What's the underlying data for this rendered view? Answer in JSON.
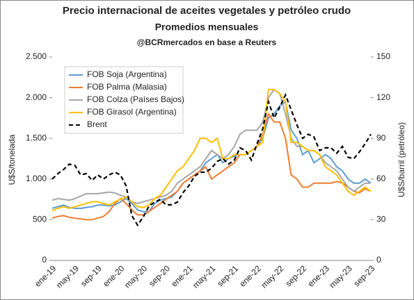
{
  "chart_data": {
    "type": "line",
    "title": "Precio internacional de aceites vegetales y petróleo crudo",
    "subtitle": "Promedios mensuales",
    "source": "@BCRmercados en base a Reuters",
    "y_label": "U$S/tonelada",
    "y2_label": "U$S/barril (petróleo)",
    "categories": [
      "ene-19",
      null,
      null,
      null,
      "may-19",
      null,
      null,
      null,
      "sep-19",
      null,
      null,
      null,
      "ene-20",
      null,
      null,
      null,
      "may-20",
      null,
      null,
      null,
      "sep-20",
      null,
      null,
      null,
      "ene-21",
      null,
      null,
      null,
      "may-21",
      null,
      null,
      null,
      "sep-21",
      null,
      null,
      null,
      "ene-22",
      null,
      null,
      null,
      "may-22",
      null,
      null,
      null,
      "sep-22",
      null,
      null,
      null,
      "ene-23",
      null,
      null,
      null,
      "may-23",
      null,
      null,
      null,
      "sep-23"
    ],
    "ylim": [
      0,
      2500
    ],
    "yticks": [
      0,
      500,
      {
        "value": 1000,
        "label": "1.000"
      },
      {
        "value": 1500,
        "label": "1.500"
      },
      {
        "value": 2000,
        "label": "2.000"
      },
      {
        "value": 2500,
        "label": "2.500"
      }
    ],
    "y2lim": [
      0,
      150
    ],
    "y2ticks": [
      0,
      30,
      60,
      90,
      120,
      150
    ],
    "legend": "upper-left",
    "series": [
      {
        "name": "FOB Soja (Argentina)",
        "color": "#5b9bd5",
        "values": [
          640,
          660,
          680,
          650,
          640,
          640,
          650,
          660,
          680,
          680,
          670,
          680,
          720,
          760,
          700,
          620,
          600,
          600,
          700,
          740,
          760,
          780,
          850,
          950,
          1000,
          1050,
          1100,
          1200,
          1250,
          1300,
          1200,
          1250,
          1280,
          1300,
          1300,
          1350,
          1400,
          1500,
          1750,
          1800,
          1900,
          1950,
          1600,
          1500,
          1300,
          1350,
          1200,
          1250,
          1300,
          1250,
          1150,
          1100,
          1000,
          950,
          950,
          1000,
          950
        ]
      },
      {
        "name": "FOB Palma (Malasia)",
        "color": "#ed7d31",
        "values": [
          520,
          540,
          550,
          530,
          520,
          510,
          500,
          500,
          520,
          540,
          600,
          700,
          760,
          700,
          620,
          560,
          560,
          600,
          650,
          700,
          750,
          800,
          850,
          950,
          1000,
          1050,
          1100,
          1150,
          1000,
          1050,
          1100,
          1150,
          1200,
          1300,
          1300,
          1350,
          1400,
          1550,
          1800,
          1700,
          1700,
          1500,
          1050,
          1000,
          900,
          900,
          950,
          950,
          950,
          950,
          970,
          950,
          900,
          850,
          830,
          880,
          850
        ]
      },
      {
        "name": "FOB Colza (Países Bajos)",
        "color": "#a5a5a5",
        "values": [
          740,
          760,
          750,
          740,
          760,
          790,
          820,
          820,
          820,
          830,
          840,
          830,
          800,
          780,
          720,
          700,
          720,
          740,
          760,
          780,
          800,
          850,
          950,
          1000,
          1050,
          1100,
          1150,
          1250,
          1350,
          1300,
          1250,
          1300,
          1400,
          1550,
          1600,
          1600,
          1600,
          1700,
          2000,
          2100,
          2050,
          1800,
          1500,
          1400,
          1400,
          1350,
          1350,
          1300,
          1200,
          1150,
          1100,
          1000,
          900,
          850,
          900,
          950,
          950
        ]
      },
      {
        "name": "FOB Girasol (Argentina)",
        "color": "#ffc000",
        "values": [
          610,
          640,
          660,
          640,
          660,
          680,
          700,
          720,
          720,
          700,
          680,
          720,
          750,
          780,
          720,
          660,
          650,
          680,
          760,
          800,
          900,
          1000,
          1100,
          1150,
          1250,
          1350,
          1500,
          1500,
          1450,
          1500,
          1250,
          1250,
          1300,
          1300,
          1300,
          1350,
          1400,
          1450,
          2100,
          2100,
          2050,
          1950,
          1450,
          1450,
          1400,
          1350,
          1350,
          1300,
          1150,
          1100,
          1050,
          950,
          850,
          800,
          850,
          900,
          850
        ]
      },
      {
        "name": "Brent",
        "color": "#000000",
        "dash": true,
        "axis": "y2",
        "values": [
          60,
          64,
          67,
          71,
          70,
          63,
          64,
          59,
          63,
          60,
          63,
          65,
          63,
          55,
          33,
          26,
          32,
          40,
          43,
          45,
          41,
          41,
          43,
          50,
          55,
          62,
          65,
          65,
          68,
          73,
          75,
          71,
          74,
          83,
          81,
          74,
          86,
          97,
          117,
          105,
          113,
          122,
          111,
          100,
          90,
          93,
          91,
          81,
          83,
          83,
          79,
          84,
          76,
          75,
          80,
          86,
          93
        ]
      }
    ]
  }
}
